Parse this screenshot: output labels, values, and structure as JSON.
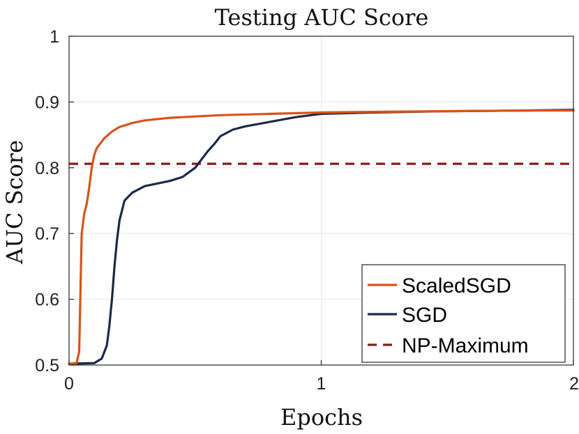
{
  "chart_data": {
    "type": "line",
    "title": "Testing AUC Score",
    "xlabel": "Epochs",
    "ylabel": "AUC Score",
    "xlim": [
      0,
      2
    ],
    "ylim": [
      0.5,
      1
    ],
    "xticks": [
      0,
      1,
      2
    ],
    "xtick_labels": [
      "0",
      "1",
      "2"
    ],
    "yticks": [
      0.5,
      0.6,
      0.7,
      0.8,
      0.9,
      1
    ],
    "ytick_labels": [
      "0.5",
      "0.6",
      "0.7",
      "0.8",
      "0.9",
      "1"
    ],
    "grid": true,
    "legend_position": "bottom-right",
    "series": [
      {
        "name": "ScaledSGD",
        "color": "#d95319",
        "style": "solid",
        "x": [
          0,
          0.03,
          0.04,
          0.05,
          0.06,
          0.07,
          0.08,
          0.09,
          0.1,
          0.11,
          0.12,
          0.14,
          0.17,
          0.2,
          0.25,
          0.3,
          0.4,
          0.5,
          0.6,
          0.8,
          1.0,
          1.2,
          1.5,
          1.8,
          2.0
        ],
        "y": [
          0.502,
          0.503,
          0.52,
          0.7,
          0.73,
          0.745,
          0.77,
          0.8,
          0.82,
          0.83,
          0.835,
          0.845,
          0.855,
          0.862,
          0.868,
          0.872,
          0.876,
          0.878,
          0.88,
          0.882,
          0.884,
          0.885,
          0.886,
          0.887,
          0.887
        ]
      },
      {
        "name": "SGD",
        "color": "#1b2a47",
        "style": "solid",
        "x": [
          0,
          0.1,
          0.13,
          0.15,
          0.16,
          0.17,
          0.18,
          0.19,
          0.2,
          0.22,
          0.25,
          0.3,
          0.4,
          0.45,
          0.5,
          0.55,
          0.58,
          0.6,
          0.65,
          0.7,
          0.8,
          0.9,
          1.0,
          1.2,
          1.5,
          1.8,
          2.0
        ],
        "y": [
          0.502,
          0.503,
          0.51,
          0.53,
          0.56,
          0.6,
          0.65,
          0.69,
          0.72,
          0.75,
          0.762,
          0.772,
          0.78,
          0.786,
          0.8,
          0.825,
          0.838,
          0.848,
          0.858,
          0.863,
          0.87,
          0.877,
          0.882,
          0.884,
          0.886,
          0.887,
          0.888
        ]
      },
      {
        "name": "NP-Maximum",
        "color": "#8b1a1a",
        "style": "dashed",
        "x": [
          0,
          2
        ],
        "y": [
          0.806,
          0.806
        ]
      }
    ]
  }
}
